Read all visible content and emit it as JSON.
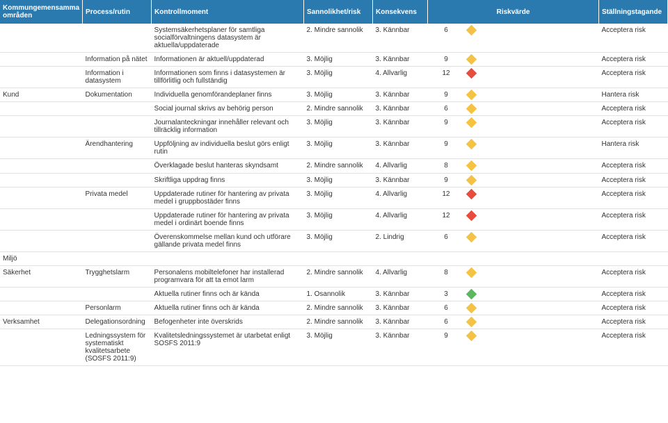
{
  "headers": [
    "Kommungemensamma områden",
    "Process/rutin",
    "Kontrollmoment",
    "Sannolikhet/risk",
    "Konsekvens",
    "Riskvärde",
    "",
    "Ställningstagande"
  ],
  "colors": {
    "red": "#e84c3d",
    "yellow": "#f5c344",
    "green": "#5cb85c",
    "headerBg": "#2a7ab0"
  },
  "rows": [
    {
      "om": "",
      "pr": "",
      "km": "Systemsäkerhetsplaner för samtliga socialförvaltningens datasystem är aktuella/uppdaterade",
      "sa": "2. Mindre sannolik",
      "ko": "3. Kännbar",
      "rv": "6",
      "sw": "yel",
      "st": "Acceptera risk"
    },
    {
      "om": "",
      "pr": "Information på nätet",
      "km": "Informationen är aktuell/uppdaterad",
      "sa": "3. Möjlig",
      "ko": "3. Kännbar",
      "rv": "9",
      "sw": "yel",
      "st": "Acceptera risk"
    },
    {
      "om": "",
      "pr": "Information i datasystem",
      "km": "Informationen som finns i datasystemen är tillförlitlig och fullständig",
      "sa": "3. Möjlig",
      "ko": "4. Allvarlig",
      "rv": "12",
      "sw": "red",
      "st": "Acceptera risk"
    },
    {
      "om": "Kund",
      "pr": "Dokumentation",
      "km": "Individuella genomförandeplaner finns",
      "sa": "3. Möjlig",
      "ko": "3. Kännbar",
      "rv": "9",
      "sw": "yel",
      "st": "Hantera risk"
    },
    {
      "om": "",
      "pr": "",
      "km": "Social journal skrivs av behörig person",
      "sa": "2. Mindre sannolik",
      "ko": "3. Kännbar",
      "rv": "6",
      "sw": "yel",
      "st": "Acceptera risk"
    },
    {
      "om": "",
      "pr": "",
      "km": "Journalanteckningar innehåller relevant och tillräcklig information",
      "sa": "3. Möjlig",
      "ko": "3. Kännbar",
      "rv": "9",
      "sw": "yel",
      "st": "Acceptera risk"
    },
    {
      "om": "",
      "pr": "Ärendhantering",
      "km": "Uppföljning av individuella beslut görs enligt rutin",
      "sa": "3. Möjlig",
      "ko": "3. Kännbar",
      "rv": "9",
      "sw": "yel",
      "st": "Hantera risk"
    },
    {
      "om": "",
      "pr": "",
      "km": "Överklagade beslut hanteras skyndsamt",
      "sa": "2. Mindre sannolik",
      "ko": "4. Allvarlig",
      "rv": "8",
      "sw": "yel",
      "st": "Acceptera risk"
    },
    {
      "om": "",
      "pr": "",
      "km": "Skriftliga uppdrag finns",
      "sa": "3. Möjlig",
      "ko": "3. Kännbar",
      "rv": "9",
      "sw": "yel",
      "st": "Acceptera risk"
    },
    {
      "om": "",
      "pr": "Privata medel",
      "km": "Uppdaterade rutiner för hantering av privata medel i gruppbostäder finns",
      "sa": "3. Möjlig",
      "ko": "4. Allvarlig",
      "rv": "12",
      "sw": "red",
      "st": "Acceptera risk"
    },
    {
      "om": "",
      "pr": "",
      "km": "Uppdaterade rutiner för hantering av privata medel i ordinärt boende finns",
      "sa": "3. Möjlig",
      "ko": "4. Allvarlig",
      "rv": "12",
      "sw": "red",
      "st": "Acceptera risk"
    },
    {
      "om": "",
      "pr": "",
      "km": "Överenskommelse mellan kund och utförare gällande privata medel finns",
      "sa": "3. Möjlig",
      "ko": "2. Lindrig",
      "rv": "6",
      "sw": "yel",
      "st": "Acceptera risk"
    },
    {
      "om": "Miljö",
      "pr": "",
      "km": "",
      "sa": "",
      "ko": "",
      "rv": "",
      "sw": "",
      "st": ""
    },
    {
      "om": "Säkerhet",
      "pr": "Trygghetslarm",
      "km": "Personalens mobiltelefoner har installerad programvara för att ta emot larm",
      "sa": "2. Mindre sannolik",
      "ko": "4. Allvarlig",
      "rv": "8",
      "sw": "yel",
      "st": "Acceptera risk"
    },
    {
      "om": "",
      "pr": "",
      "km": "Aktuella rutiner finns och är kända",
      "sa": "1. Osannolik",
      "ko": "3. Kännbar",
      "rv": "3",
      "sw": "grn",
      "st": "Acceptera risk"
    },
    {
      "om": "",
      "pr": "Personlarm",
      "km": "Aktuella rutiner finns och är kända",
      "sa": "2. Mindre sannolik",
      "ko": "3. Kännbar",
      "rv": "6",
      "sw": "yel",
      "st": "Acceptera risk"
    },
    {
      "om": "Verksamhet",
      "pr": "Delegationsordning",
      "km": "Befogenheter inte överskrids",
      "sa": "2. Mindre sannolik",
      "ko": "3. Kännbar",
      "rv": "6",
      "sw": "yel",
      "st": "Acceptera risk"
    },
    {
      "om": "",
      "pr": "Ledningssystem för systematiskt kvalitetsarbete (SOSFS 2011:9)",
      "km": "Kvalitetsledningssystemet är utarbetat enligt SOSFS 2011:9",
      "sa": "3. Möjlig",
      "ko": "3. Kännbar",
      "rv": "9",
      "sw": "yel",
      "st": "Acceptera risk"
    }
  ]
}
